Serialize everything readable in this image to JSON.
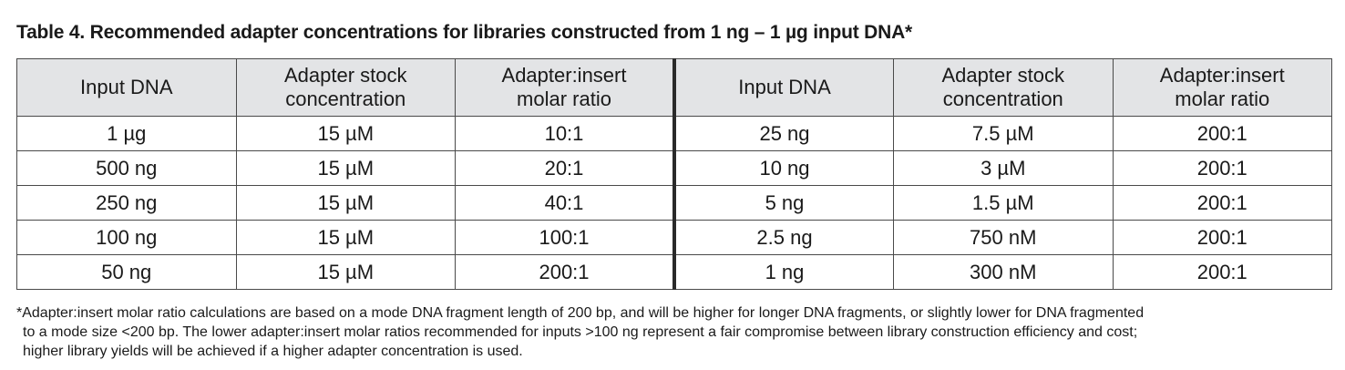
{
  "caption": "Table 4. Recommended adapter concentrations for libraries constructed from 1 ng – 1 µg input DNA*",
  "headers": [
    [
      "Input DNA"
    ],
    [
      "Adapter stock",
      "concentration"
    ],
    [
      "Adapter:insert",
      "molar ratio"
    ],
    [
      "Input DNA"
    ],
    [
      "Adapter stock",
      "concentration"
    ],
    [
      "Adapter:insert",
      "molar ratio"
    ]
  ],
  "rows": [
    [
      "1 µg",
      "15 µM",
      "10:1",
      "25 ng",
      "7.5 µM",
      "200:1"
    ],
    [
      "500 ng",
      "15 µM",
      "20:1",
      "10 ng",
      "3 µM",
      "200:1"
    ],
    [
      "250 ng",
      "15 µM",
      "40:1",
      "5 ng",
      "1.5 µM",
      "200:1"
    ],
    [
      "100 ng",
      "15 µM",
      "100:1",
      "2.5 ng",
      "750 nM",
      "200:1"
    ],
    [
      "50 ng",
      "15 µM",
      "200:1",
      "1 ng",
      "300 nM",
      "200:1"
    ]
  ],
  "footnote": [
    "*Adapter:insert molar ratio calculations are based on a mode DNA fragment length of 200 bp, and will be higher for longer DNA fragments, or slightly lower for DNA fragmented",
    "to a mode size <200 bp. The lower adapter:insert molar ratios recommended for inputs >100 ng represent a fair compromise between library construction efficiency and cost;",
    "higher library yields will be achieved if a higher adapter concentration is used."
  ]
}
